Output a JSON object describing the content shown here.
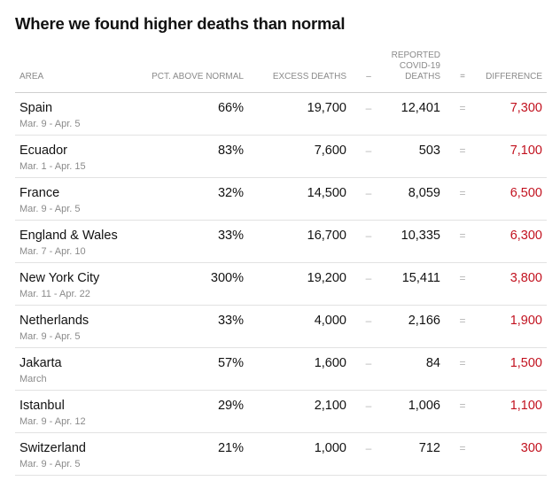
{
  "title": "Where we found higher deaths than normal",
  "columns": {
    "area": "AREA",
    "pct_above": "PCT. ABOVE NORMAL",
    "excess": "EXCESS DEATHS",
    "minus": "–",
    "reported": "REPORTED COVID-19 DEATHS",
    "equals": "=",
    "difference": "DIFFERENCE"
  },
  "operators": {
    "minus": "–",
    "equals": "="
  },
  "colors": {
    "difference": "#c2121f",
    "muted": "#8a8a8a"
  },
  "rows": [
    {
      "area": "Spain",
      "dates": "Mar. 9 - Apr. 5",
      "pct": "66%",
      "excess": "19,700",
      "reported": "12,401",
      "difference": "7,300"
    },
    {
      "area": "Ecuador",
      "dates": "Mar. 1 - Apr. 15",
      "pct": "83%",
      "excess": "7,600",
      "reported": "503",
      "difference": "7,100"
    },
    {
      "area": "France",
      "dates": "Mar. 9 - Apr. 5",
      "pct": "32%",
      "excess": "14,500",
      "reported": "8,059",
      "difference": "6,500"
    },
    {
      "area": "England & Wales",
      "dates": "Mar. 7 - Apr. 10",
      "pct": "33%",
      "excess": "16,700",
      "reported": "10,335",
      "difference": "6,300"
    },
    {
      "area": "New York City",
      "dates": "Mar. 11 - Apr. 22",
      "pct": "300%",
      "excess": "19,200",
      "reported": "15,411",
      "difference": "3,800"
    },
    {
      "area": "Netherlands",
      "dates": "Mar. 9 - Apr. 5",
      "pct": "33%",
      "excess": "4,000",
      "reported": "2,166",
      "difference": "1,900"
    },
    {
      "area": "Jakarta",
      "dates": "March",
      "pct": "57%",
      "excess": "1,600",
      "reported": "84",
      "difference": "1,500"
    },
    {
      "area": "Istanbul",
      "dates": "Mar. 9 - Apr. 12",
      "pct": "29%",
      "excess": "2,100",
      "reported": "1,006",
      "difference": "1,100"
    },
    {
      "area": "Switzerland",
      "dates": "Mar. 9 - Apr. 5",
      "pct": "21%",
      "excess": "1,000",
      "reported": "712",
      "difference": "300"
    }
  ]
}
